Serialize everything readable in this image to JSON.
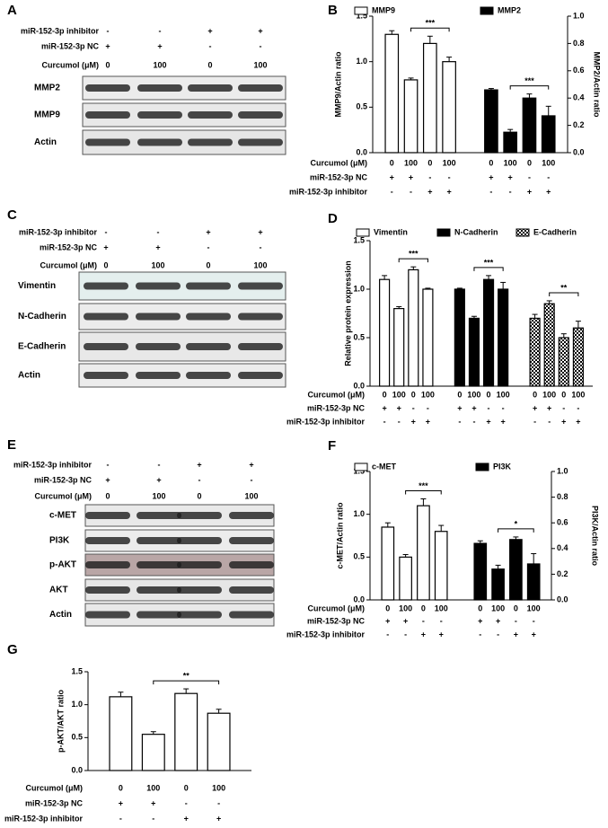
{
  "blots": [
    {
      "panel": "A",
      "conditions": [
        {
          "label": "miR-152-3p inhibitor",
          "marks": [
            "-",
            "-",
            "+",
            "+"
          ]
        },
        {
          "label": "miR-152-3p NC",
          "marks": [
            "+",
            "+",
            "-",
            "-"
          ]
        },
        {
          "label": "Curcumol (μM)",
          "marks": [
            "0",
            "100",
            "0",
            "100"
          ]
        }
      ],
      "rows": [
        "MMP2",
        "MMP9",
        "Actin"
      ]
    },
    {
      "panel": "C",
      "conditions": [
        {
          "label": "miR-152-3p inhibitor",
          "marks": [
            "-",
            "-",
            "+",
            "+"
          ]
        },
        {
          "label": "miR-152-3p NC",
          "marks": [
            "+",
            "+",
            "-",
            "-"
          ]
        },
        {
          "label": "Curcumol (μM)",
          "marks": [
            "0",
            "100",
            "0",
            "100"
          ]
        }
      ],
      "rows": [
        "Vimentin",
        "N-Cadherin",
        "E-Cadherin",
        "Actin"
      ]
    },
    {
      "panel": "E",
      "conditions": [
        {
          "label": "miR-152-3p inhibitor",
          "marks": [
            "-",
            "-",
            "+",
            "+"
          ]
        },
        {
          "label": "miR-152-3p NC",
          "marks": [
            "+",
            "+",
            "-",
            "-"
          ]
        },
        {
          "label": "Curcumol (μM)",
          "marks": [
            "0",
            "100",
            "0",
            "100"
          ]
        }
      ],
      "rows": [
        "c-MET",
        "PI3K",
        "p-AKT",
        "AKT",
        "Actin"
      ]
    }
  ],
  "chart_data": [
    {
      "type": "bar",
      "panel": "B",
      "ylabel": "MMP9/Actin ratio",
      "y2label": "MMP2/Actin ratio",
      "ylim": [
        0,
        1.5
      ],
      "yticks": [
        {
          "value": 0,
          "label": "0.0"
        },
        0.5,
        {
          "value": 1,
          "label": "1.0"
        },
        1.5
      ],
      "y2lim": [
        0,
        1
      ],
      "y2ticks": [
        {
          "value": 0,
          "label": "0.0"
        },
        0.2,
        0.4,
        0.6,
        0.8,
        {
          "value": 1,
          "label": "1.0"
        }
      ],
      "conditions": [
        {
          "label": "Curcumol (μM)",
          "marks": [
            "0",
            "100",
            "0",
            "100"
          ]
        },
        {
          "label": "miR-152-3p NC",
          "marks": [
            "+",
            "+",
            "-",
            "-"
          ]
        },
        {
          "label": "miR-152-3p inhibitor",
          "marks": [
            "-",
            "-",
            "+",
            "+"
          ]
        }
      ],
      "series": [
        {
          "name": "MMP9",
          "color": "#ffffff",
          "values": [
            1.3,
            0.8,
            1.2,
            1.0
          ],
          "errors": [
            0.04,
            0.02,
            0.08,
            0.05
          ],
          "significance": "***"
        },
        {
          "name": "MMP2",
          "color": "#000000",
          "axis": "y2",
          "values": [
            0.46,
            0.15,
            0.4,
            0.27
          ],
          "errors": [
            0.01,
            0.02,
            0.03,
            0.07
          ],
          "significance": "***"
        }
      ]
    },
    {
      "type": "bar",
      "panel": "D",
      "ylabel": "Relative protein expression",
      "ylim": [
        0,
        1.5
      ],
      "yticks": [
        {
          "value": 0,
          "label": "0.0"
        },
        0.5,
        {
          "value": 1,
          "label": "1.0"
        },
        1.5
      ],
      "conditions": [
        {
          "label": "Curcumol (μM)",
          "marks": [
            "0",
            "100",
            "0",
            "100"
          ]
        },
        {
          "label": "miR-152-3p NC",
          "marks": [
            "+",
            "+",
            "-",
            "-"
          ]
        },
        {
          "label": "miR-152-3p inhibitor",
          "marks": [
            "-",
            "-",
            "+",
            "+"
          ]
        }
      ],
      "series": [
        {
          "name": "Vimentin",
          "color": "#ffffff",
          "values": [
            1.1,
            0.8,
            1.2,
            1.0
          ],
          "errors": [
            0.04,
            0.02,
            0.03,
            0.01
          ],
          "significance": "***"
        },
        {
          "name": "N-Cadherin",
          "color": "#000000",
          "values": [
            1.0,
            0.7,
            1.1,
            1.0
          ],
          "errors": [
            0.01,
            0.02,
            0.04,
            0.07
          ],
          "significance": "***"
        },
        {
          "name": "E-Cadherin",
          "color": "#ffffff",
          "pattern": "checker",
          "values": [
            0.7,
            0.85,
            0.5,
            0.6
          ],
          "errors": [
            0.04,
            0.03,
            0.04,
            0.07
          ],
          "significance": "**"
        }
      ]
    },
    {
      "type": "bar",
      "panel": "F",
      "ylabel": "c-MET/Actin ratio",
      "y2label": "PI3K/Actin ratio",
      "ylim": [
        0,
        1.5
      ],
      "yticks": [
        {
          "value": 0,
          "label": "0.0"
        },
        0.5,
        {
          "value": 1,
          "label": "1.0"
        },
        1.5
      ],
      "y2lim": [
        0,
        1
      ],
      "y2ticks": [
        {
          "value": 0,
          "label": "0.0"
        },
        0.2,
        0.4,
        0.6,
        0.8,
        {
          "value": 1,
          "label": "1.0"
        }
      ],
      "conditions": [
        {
          "label": "Curcumol (μM)",
          "marks": [
            "0",
            "100",
            "0",
            "100"
          ]
        },
        {
          "label": "miR-152-3p NC",
          "marks": [
            "+",
            "+",
            "-",
            "-"
          ]
        },
        {
          "label": "miR-152-3p inhibitor",
          "marks": [
            "-",
            "-",
            "+",
            "+"
          ]
        }
      ],
      "series": [
        {
          "name": "c-MET",
          "color": "#ffffff",
          "values": [
            0.85,
            0.5,
            1.1,
            0.8
          ],
          "errors": [
            0.05,
            0.03,
            0.08,
            0.07
          ],
          "significance": "***"
        },
        {
          "name": "PI3K",
          "color": "#000000",
          "axis": "y2",
          "values": [
            0.44,
            0.24,
            0.47,
            0.28
          ],
          "errors": [
            0.02,
            0.03,
            0.02,
            0.08
          ],
          "significance": "*"
        }
      ]
    },
    {
      "type": "bar",
      "panel": "G",
      "ylabel": "p-AKT/AKT ratio",
      "ylim": [
        0,
        1.5
      ],
      "yticks": [
        {
          "value": 0,
          "label": "0.0"
        },
        0.5,
        {
          "value": 1,
          "label": "1.0"
        },
        1.5
      ],
      "conditions": [
        {
          "label": "Curcumol (μM)",
          "marks": [
            "0",
            "100",
            "0",
            "100"
          ]
        },
        {
          "label": "miR-152-3p NC",
          "marks": [
            "+",
            "+",
            "-",
            "-"
          ]
        },
        {
          "label": "miR-152-3p inhibitor",
          "marks": [
            "-",
            "-",
            "+",
            "+"
          ]
        }
      ],
      "series": [
        {
          "color": "#ffffff",
          "values": [
            1.12,
            0.55,
            1.17,
            0.87
          ],
          "errors": [
            0.07,
            0.04,
            0.07,
            0.06
          ],
          "significance": "**"
        }
      ]
    }
  ]
}
